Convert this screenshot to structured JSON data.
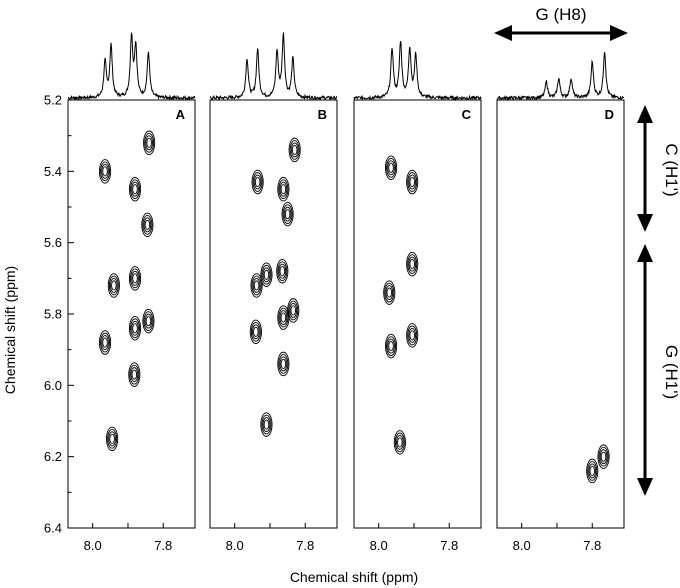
{
  "chart_data": {
    "type": "scatter",
    "title": "",
    "xlabel": "Chemical shift (ppm)",
    "ylabel": "Chemical shift (ppm)",
    "x_reversed": true,
    "xlim": [
      8.07,
      7.71
    ],
    "ylim": [
      5.2,
      6.4
    ],
    "y_ticks": [
      "5.2",
      "5.4",
      "5.6",
      "5.8",
      "6.0",
      "6.2",
      "6.4"
    ],
    "x_ticks": [
      "8.0",
      "7.8"
    ],
    "grid": false,
    "panels": [
      {
        "label": "A",
        "spectrum_peaks": [
          {
            "x": 7.965,
            "h": 0.55
          },
          {
            "x": 7.948,
            "h": 0.8
          },
          {
            "x": 7.89,
            "h": 0.92
          },
          {
            "x": 7.878,
            "h": 0.78
          },
          {
            "x": 7.842,
            "h": 0.7
          }
        ],
        "peaks": [
          {
            "x": 7.84,
            "y": 5.32
          },
          {
            "x": 7.965,
            "y": 5.4
          },
          {
            "x": 7.88,
            "y": 5.45
          },
          {
            "x": 7.845,
            "y": 5.55
          },
          {
            "x": 7.94,
            "y": 5.72
          },
          {
            "x": 7.88,
            "y": 5.7
          },
          {
            "x": 7.842,
            "y": 5.82
          },
          {
            "x": 7.88,
            "y": 5.84
          },
          {
            "x": 7.965,
            "y": 5.88
          },
          {
            "x": 7.882,
            "y": 5.97
          },
          {
            "x": 7.945,
            "y": 6.15
          }
        ]
      },
      {
        "label": "B",
        "spectrum_peaks": [
          {
            "x": 7.965,
            "h": 0.6
          },
          {
            "x": 7.935,
            "h": 0.75
          },
          {
            "x": 7.88,
            "h": 0.7
          },
          {
            "x": 7.862,
            "h": 0.95
          },
          {
            "x": 7.835,
            "h": 0.6
          }
        ],
        "peaks": [
          {
            "x": 7.83,
            "y": 5.34
          },
          {
            "x": 7.935,
            "y": 5.43
          },
          {
            "x": 7.862,
            "y": 5.45
          },
          {
            "x": 7.85,
            "y": 5.52
          },
          {
            "x": 7.938,
            "y": 5.72
          },
          {
            "x": 7.91,
            "y": 5.69
          },
          {
            "x": 7.865,
            "y": 5.68
          },
          {
            "x": 7.862,
            "y": 5.81
          },
          {
            "x": 7.834,
            "y": 5.79
          },
          {
            "x": 7.94,
            "y": 5.85
          },
          {
            "x": 7.862,
            "y": 5.94
          },
          {
            "x": 7.91,
            "y": 6.11
          }
        ]
      },
      {
        "label": "C",
        "spectrum_peaks": [
          {
            "x": 7.962,
            "h": 0.75
          },
          {
            "x": 7.938,
            "h": 0.85
          },
          {
            "x": 7.912,
            "h": 0.75
          },
          {
            "x": 7.895,
            "h": 0.65
          }
        ],
        "peaks": [
          {
            "x": 7.965,
            "y": 5.39
          },
          {
            "x": 7.905,
            "y": 5.43
          },
          {
            "x": 7.905,
            "y": 5.66
          },
          {
            "x": 7.97,
            "y": 5.74
          },
          {
            "x": 7.905,
            "y": 5.86
          },
          {
            "x": 7.965,
            "y": 5.89
          },
          {
            "x": 7.94,
            "y": 6.16
          }
        ]
      },
      {
        "label": "D",
        "spectrum_peaks": [
          {
            "x": 7.93,
            "h": 0.25
          },
          {
            "x": 7.895,
            "h": 0.3
          },
          {
            "x": 7.86,
            "h": 0.3
          },
          {
            "x": 7.8,
            "h": 0.55
          },
          {
            "x": 7.765,
            "h": 0.72
          }
        ],
        "peaks": [
          {
            "x": 7.8,
            "y": 6.24
          },
          {
            "x": 7.768,
            "y": 6.2
          }
        ]
      }
    ],
    "annotations": [
      {
        "text": "G (H8)",
        "orientation": "horizontal"
      },
      {
        "text": "C (H1')",
        "orientation": "vertical"
      },
      {
        "text": "G (H1')",
        "orientation": "vertical"
      }
    ]
  }
}
